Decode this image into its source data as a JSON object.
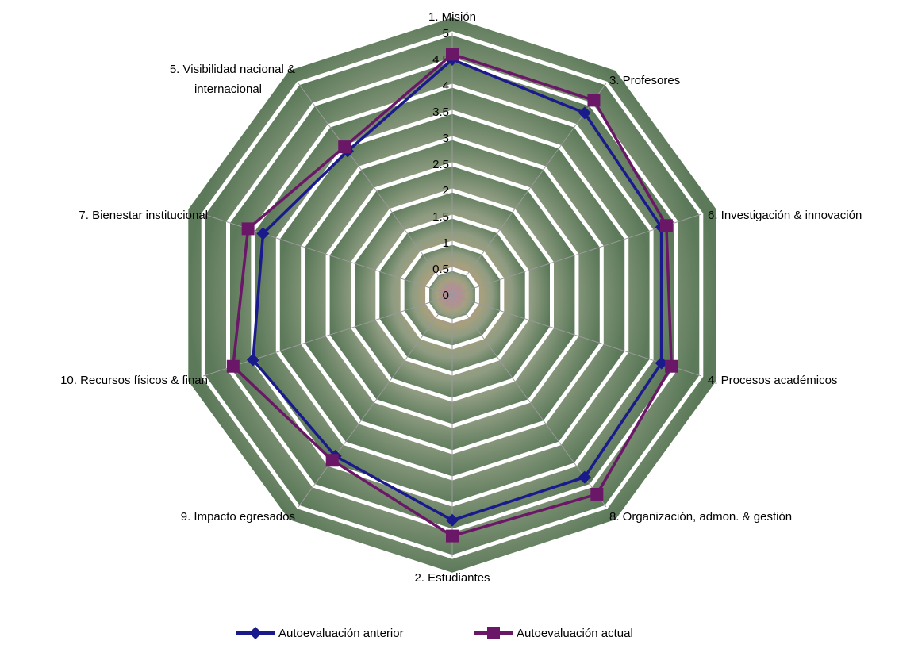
{
  "chart_data": {
    "type": "radar",
    "title": "",
    "rlim": [
      0,
      5
    ],
    "r_ticks": [
      "0",
      "0.5",
      "1",
      "1.5",
      "2",
      "2.5",
      "3",
      "3.5",
      "4",
      "4.5",
      "5"
    ],
    "categories": [
      "1. Misión",
      "3. Profesores",
      "6. Investigación & innovación",
      "4. Procesos académicos",
      "8. Organización, admon. & gestión",
      "2. Estudiantes",
      "9. Impacto egresados",
      "10. Recursos físicos & finan",
      "7. Bienestar institucional",
      "5. Visibilidad nacional & internacional"
    ],
    "series": [
      {
        "name": "Autoevaluación anterior",
        "color": "#1a1a8c",
        "marker": "diamond",
        "values": [
          4.5,
          4.3,
          4.2,
          4.2,
          4.3,
          4.3,
          3.8,
          4.0,
          3.8,
          3.4
        ]
      },
      {
        "name": "Autoevaluación actual",
        "color": "#6b1768",
        "marker": "square",
        "values": [
          4.6,
          4.6,
          4.3,
          4.4,
          4.7,
          4.6,
          3.9,
          4.4,
          4.1,
          3.5
        ]
      }
    ],
    "legend_position": "bottom",
    "grid": true
  }
}
